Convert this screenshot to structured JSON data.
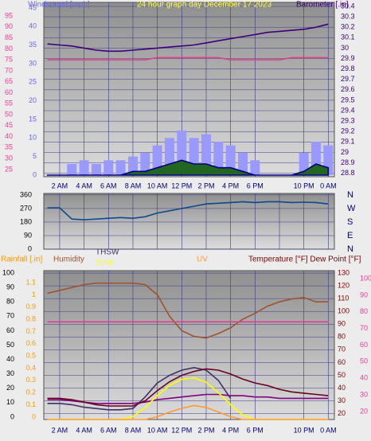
{
  "chart_data": [
    {
      "type": "line",
      "title": "24 hour graph day   December 17 2023",
      "title_color": "#ffff40",
      "x": [
        1,
        2,
        3,
        4,
        5,
        6,
        7,
        8,
        9,
        10,
        11,
        12,
        13,
        14,
        15,
        16,
        17,
        18,
        19,
        20,
        21,
        22,
        23,
        24
      ],
      "xlim": [
        0.7,
        24.5
      ],
      "xticks": [
        {
          "value": 2,
          "label": "2 AM"
        },
        {
          "value": 4,
          "label": "4 AM"
        },
        {
          "value": 6,
          "label": "6 AM"
        },
        {
          "value": 8,
          "label": "8 AM"
        },
        {
          "value": 10,
          "label": "10 AM"
        },
        {
          "value": 12,
          "label": "12 PM"
        },
        {
          "value": 14,
          "label": "2 PM"
        },
        {
          "value": 16,
          "label": "4 PM"
        },
        {
          "value": 18,
          "label": "6 PM"
        },
        {
          "value": 22,
          "label": "10 PM"
        },
        {
          "value": 24,
          "label": "0 AM"
        }
      ],
      "axes": [
        {
          "color": "#ff3399",
          "ylim": [
            21.7,
            101.2
          ],
          "yticks": [
            25,
            30,
            35,
            40,
            45,
            50,
            55,
            60,
            65,
            70,
            75,
            80,
            85,
            90,
            95
          ]
        },
        {
          "label": "Windspeed [mph]",
          "color": "#6666ff",
          "ylim": [
            -0.43,
            46.5
          ],
          "yticks": [
            0,
            5,
            10,
            15,
            20,
            25,
            30,
            35,
            40,
            45
          ]
        },
        {
          "label": "Barometer [.in]",
          "color": "#3c0078",
          "ylim": [
            28.767,
            30.438
          ],
          "yticks": [
            28.8,
            28.9,
            29,
            29.1,
            29.2,
            29.3,
            29.4,
            29.5,
            29.6,
            29.7,
            29.8,
            29.9,
            30,
            30.1,
            30.2,
            30.3,
            30.4
          ],
          "grid": true
        }
      ],
      "series": [
        {
          "type": "bar",
          "color": "#9999ff",
          "axis": 1,
          "values": [
            0,
            0,
            3,
            4,
            3,
            4,
            4,
            5,
            6,
            8,
            10,
            12,
            10,
            11,
            9,
            8,
            6,
            4,
            0,
            0,
            0,
            6,
            9,
            8
          ]
        },
        {
          "type": "area",
          "color": "#226622",
          "axis": 1,
          "values": [
            0,
            0,
            0,
            0,
            0,
            0,
            0,
            1,
            1,
            2,
            3,
            4,
            3,
            3,
            2,
            2,
            1,
            0,
            0,
            0,
            0,
            1,
            3,
            2
          ]
        },
        {
          "type": "line",
          "color": "#e0408a",
          "axis": 0,
          "values": [
            75,
            75,
            75,
            75,
            75,
            75,
            75,
            75,
            75,
            76,
            76,
            76,
            76,
            76,
            76,
            75,
            75,
            75,
            75,
            75,
            76,
            76,
            76,
            76
          ]
        },
        {
          "type": "line",
          "color": "#3c0078",
          "axis": 2,
          "values": [
            30.04,
            30.03,
            30.02,
            30,
            29.98,
            29.97,
            29.97,
            29.98,
            29.99,
            30,
            30.01,
            30.02,
            30.03,
            30.05,
            30.07,
            30.09,
            30.11,
            30.13,
            30.15,
            30.16,
            30.17,
            30.18,
            30.2,
            30.23
          ]
        }
      ]
    },
    {
      "type": "line",
      "x": [
        1,
        2,
        3,
        4,
        5,
        6,
        7,
        8,
        9,
        10,
        11,
        12,
        13,
        14,
        15,
        16,
        17,
        18,
        19,
        20,
        21,
        22,
        23,
        24
      ],
      "xlim": [
        0.7,
        24.5
      ],
      "xticks": [
        2,
        4,
        6,
        8,
        10,
        12,
        14,
        16,
        18,
        20,
        22,
        24
      ],
      "axes": [
        {
          "color": "#000000",
          "ylim": [
            0,
            370
          ],
          "yticks": [
            0,
            90,
            180,
            270,
            360
          ],
          "grid": true
        },
        {
          "color": "#000080",
          "ylim": [
            0,
            370
          ],
          "yticks": [
            {
              "value": 0,
              "label": "N"
            },
            {
              "value": 90,
              "label": "E"
            },
            {
              "value": 180,
              "label": "S"
            },
            {
              "value": 270,
              "label": "W"
            },
            {
              "value": 360,
              "label": "N"
            }
          ]
        }
      ],
      "series": [
        {
          "type": "line",
          "color": "#0c4a8c",
          "axis": 0,
          "values": [
            275,
            275,
            200,
            195,
            200,
            205,
            210,
            205,
            215,
            240,
            255,
            270,
            285,
            300,
            305,
            310,
            315,
            310,
            315,
            315,
            310,
            312,
            310,
            300
          ]
        }
      ]
    },
    {
      "type": "line",
      "x": [
        1,
        2,
        3,
        4,
        5,
        6,
        7,
        8,
        9,
        10,
        11,
        12,
        13,
        14,
        15,
        16,
        17,
        18,
        19,
        20,
        21,
        22,
        23,
        24
      ],
      "xlim": [
        0.7,
        24.5
      ],
      "xticks": [
        {
          "value": 2,
          "label": "2 AM"
        },
        {
          "value": 4,
          "label": "4 AM"
        },
        {
          "value": 6,
          "label": "6 AM"
        },
        {
          "value": 8,
          "label": "8 AM"
        },
        {
          "value": 10,
          "label": "10 AM"
        },
        {
          "value": 12,
          "label": "12 PM"
        },
        {
          "value": 14,
          "label": "2 PM"
        },
        {
          "value": 16,
          "label": "4 PM"
        },
        {
          "value": 18,
          "label": "6 PM"
        },
        {
          "value": 22,
          "label": "10 PM"
        },
        {
          "value": 24,
          "label": "0 AM"
        }
      ],
      "axes": [
        {
          "color": "#000000",
          "ylim": [
            -1.7,
            101.7
          ],
          "yticks": [
            0,
            10,
            20,
            30,
            40,
            50,
            60,
            70,
            80,
            90,
            100
          ]
        },
        {
          "label": "Rainfall [.in]",
          "color": "#ff9900",
          "ylim": [
            -0.02,
            1.198
          ],
          "yticks": [
            0,
            0.1,
            0.2,
            0.3,
            0.4,
            0.5,
            0.6,
            0.7,
            0.8,
            0.9,
            1,
            1.1
          ]
        },
        {
          "label": "Temperature [°F] Dew Point [°F]",
          "color": "#800000",
          "ylim": [
            15.4,
            131.9
          ],
          "yticks": [
            20,
            30,
            40,
            50,
            60,
            70,
            80,
            90,
            100,
            110,
            120,
            130
          ],
          "grid": true
        },
        {
          "color": "#ff3399",
          "ylim": [
            15.2,
            104.8
          ],
          "yticks": [
            20,
            30,
            40,
            50,
            60,
            70,
            80,
            90,
            100
          ]
        },
        {
          "ylim": [
            0,
            1000
          ]
        },
        {
          "ylim": [
            0,
            16
          ]
        }
      ],
      "series": [
        {
          "name": "Humidity",
          "type": "line",
          "color": "#a0522d",
          "axis": 0,
          "values": [
            86,
            88,
            90,
            92,
            93,
            93,
            93,
            93,
            92,
            85,
            70,
            60,
            56,
            55,
            58,
            62,
            68,
            72,
            77,
            80,
            82,
            83,
            80,
            80
          ]
        },
        {
          "type": "line",
          "color": "#e0408a",
          "axis": 3,
          "values": [
            74,
            74,
            74,
            74,
            74,
            74,
            74,
            74,
            74,
            74,
            74,
            74,
            74,
            74,
            74,
            74,
            74,
            74,
            74,
            74,
            74,
            74,
            74,
            74
          ]
        },
        {
          "name": "THSW",
          "type": "line",
          "color": "#40306a",
          "axis": 2,
          "values": [
            28,
            28,
            27,
            25,
            24,
            23,
            23,
            24,
            33,
            44,
            50,
            54,
            56,
            54,
            46,
            32,
            null,
            null,
            null,
            null,
            null,
            null,
            null,
            null
          ]
        },
        {
          "type": "line",
          "color": "#800080",
          "axis": 2,
          "values": [
            31,
            31,
            30,
            29,
            28,
            28,
            28,
            28,
            29,
            31,
            32,
            33,
            34,
            35,
            35,
            34,
            34,
            33,
            33,
            32,
            32,
            32,
            32,
            32
          ]
        },
        {
          "type": "line",
          "color": "#6a0020",
          "axis": 2,
          "values": [
            32,
            32,
            31,
            29,
            27,
            26,
            26,
            26,
            30,
            38,
            45,
            50,
            53,
            55,
            54,
            51,
            47,
            44,
            42,
            39,
            37,
            36,
            35,
            34
          ]
        },
        {
          "name": "Solar",
          "type": "line",
          "color": "#ffff00",
          "axis": 4,
          "values": [
            0,
            0,
            0,
            0,
            0,
            0,
            0,
            20,
            80,
            160,
            230,
            270,
            280,
            250,
            180,
            100,
            30,
            0,
            0,
            0,
            0,
            0,
            0,
            0
          ]
        },
        {
          "name": "UV",
          "type": "line",
          "color": "#ff9933",
          "axis": 5,
          "values": [
            0,
            0,
            0,
            0,
            0,
            0,
            0,
            0,
            0,
            0.3,
            0.8,
            1.2,
            1.5,
            1.3,
            0.8,
            0.3,
            0,
            0,
            0,
            0,
            0,
            0,
            0,
            0
          ]
        }
      ]
    }
  ]
}
